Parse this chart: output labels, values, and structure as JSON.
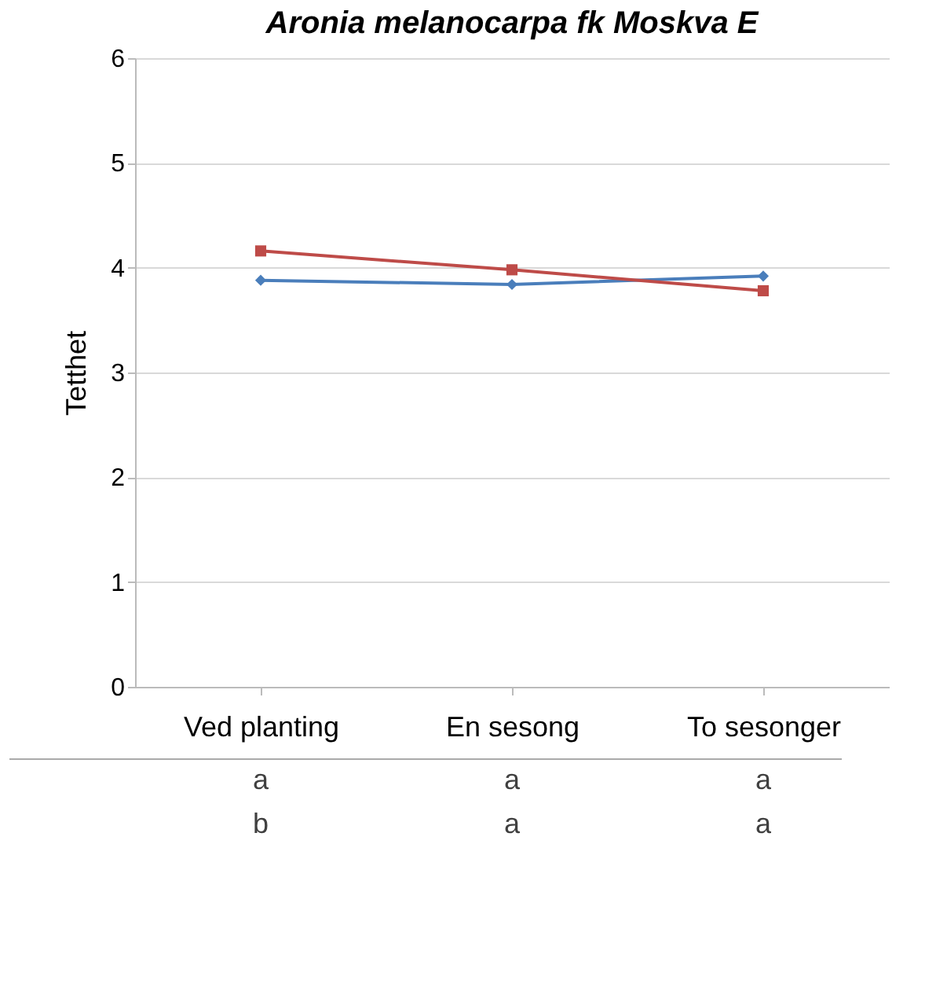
{
  "chart_data": {
    "type": "line",
    "title": "Aronia melanocarpa fk Moskva E",
    "ylabel": "Tetthet",
    "categories": [
      "Ved planting",
      "En sesong",
      "To sesonger"
    ],
    "series": [
      {
        "color": "#4a7ebb",
        "values": [
          3.88,
          3.84,
          3.92
        ],
        "marker": "diamond"
      },
      {
        "color": "#be4b48",
        "values": [
          4.16,
          3.98,
          3.78
        ],
        "marker": "square"
      }
    ],
    "ylim": [
      0,
      6
    ],
    "yticks": [
      0,
      1,
      2,
      3,
      4,
      5,
      6
    ],
    "grid": "y",
    "legend": false,
    "annotations": [
      "a",
      "a",
      "a",
      "b",
      "a",
      "a"
    ]
  }
}
